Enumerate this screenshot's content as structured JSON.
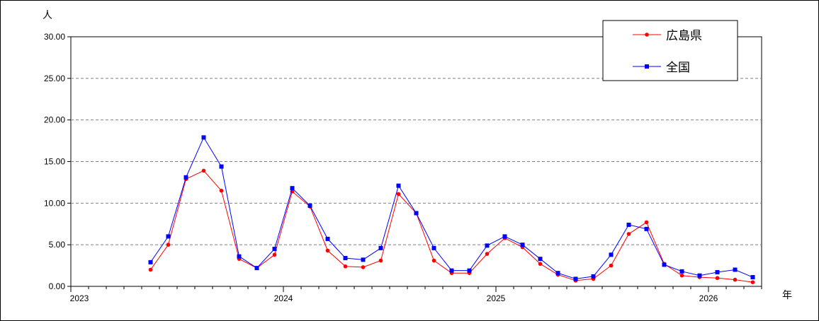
{
  "chart_data": {
    "type": "line",
    "ylabel": "人",
    "xlabel": "年",
    "ylim": [
      0,
      30
    ],
    "yticks": [
      "0.00",
      "5.00",
      "10.00",
      "15.00",
      "20.00",
      "25.00",
      "30.00"
    ],
    "years": [
      "2023",
      "2024",
      "2025",
      "2026"
    ],
    "grid": true,
    "legend_position": "top-right",
    "x": [
      "2023-01",
      "2023-02",
      "2023-03",
      "2023-04",
      "2023-05",
      "2023-06",
      "2023-07",
      "2023-08",
      "2023-09",
      "2023-10",
      "2023-11",
      "2023-12",
      "2024-01",
      "2024-02",
      "2024-03",
      "2024-04",
      "2024-05",
      "2024-06",
      "2024-07",
      "2024-08",
      "2024-09",
      "2024-10",
      "2024-11",
      "2024-12",
      "2025-01",
      "2025-02",
      "2025-03",
      "2025-04",
      "2025-05",
      "2025-06",
      "2025-07",
      "2025-08",
      "2025-09",
      "2025-10",
      "2025-11",
      "2025-12",
      "2026-01",
      "2026-02",
      "2026-03"
    ],
    "series": [
      {
        "name": "広島県",
        "color": "#ff0000",
        "marker": "circle",
        "values": [
          null,
          null,
          null,
          null,
          2.0,
          5.0,
          12.9,
          13.9,
          11.5,
          3.3,
          2.2,
          3.8,
          11.4,
          9.6,
          4.3,
          2.4,
          2.3,
          3.1,
          11.1,
          8.8,
          3.1,
          1.6,
          1.6,
          3.9,
          5.8,
          4.7,
          2.7,
          1.4,
          0.7,
          0.9,
          2.5,
          6.3,
          7.7,
          2.7,
          1.3,
          1.1,
          1.0,
          0.8,
          0.5
        ]
      },
      {
        "name": "全国",
        "color": "#0000ff",
        "marker": "square",
        "values": [
          null,
          null,
          null,
          null,
          2.9,
          6.0,
          13.1,
          17.9,
          14.4,
          3.6,
          2.2,
          4.5,
          11.8,
          9.7,
          5.7,
          3.4,
          3.2,
          4.6,
          12.1,
          8.8,
          4.6,
          1.9,
          1.9,
          4.9,
          6.0,
          5.0,
          3.3,
          1.6,
          0.9,
          1.2,
          3.8,
          7.4,
          6.9,
          2.6,
          1.8,
          1.3,
          1.7,
          2.0,
          1.1
        ]
      }
    ]
  }
}
